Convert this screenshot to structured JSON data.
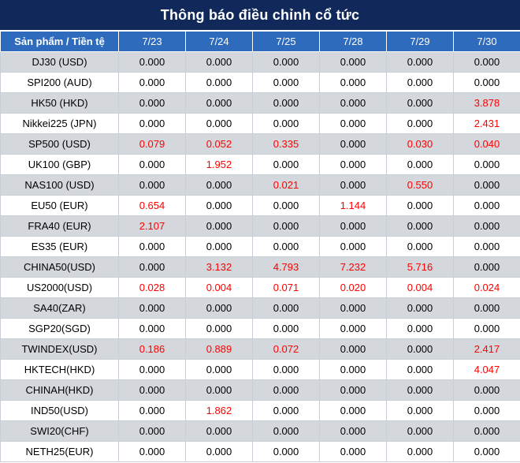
{
  "title": "Thông báo điều chỉnh cổ tức",
  "header": {
    "product_label": "Sản phẩm / Tiền tệ",
    "dates": [
      "7/23",
      "7/24",
      "7/25",
      "7/28",
      "7/29",
      "7/30"
    ]
  },
  "colors": {
    "title_bg": "#10295a",
    "header_bg": "#2f6bbd",
    "alt_row_bg": "#d4d7dc",
    "nonzero_text": "#ff0000"
  },
  "rows": [
    {
      "name": "DJ30 (USD)",
      "values": [
        "0.000",
        "0.000",
        "0.000",
        "0.000",
        "0.000",
        "0.000"
      ]
    },
    {
      "name": "SPI200 (AUD)",
      "values": [
        "0.000",
        "0.000",
        "0.000",
        "0.000",
        "0.000",
        "0.000"
      ]
    },
    {
      "name": "HK50 (HKD)",
      "values": [
        "0.000",
        "0.000",
        "0.000",
        "0.000",
        "0.000",
        "3.878"
      ]
    },
    {
      "name": "Nikkei225 (JPN)",
      "values": [
        "0.000",
        "0.000",
        "0.000",
        "0.000",
        "0.000",
        "2.431"
      ]
    },
    {
      "name": "SP500 (USD)",
      "values": [
        "0.079",
        "0.052",
        "0.335",
        "0.000",
        "0.030",
        "0.040"
      ]
    },
    {
      "name": "UK100 (GBP)",
      "values": [
        "0.000",
        "1.952",
        "0.000",
        "0.000",
        "0.000",
        "0.000"
      ]
    },
    {
      "name": "NAS100 (USD)",
      "values": [
        "0.000",
        "0.000",
        "0.021",
        "0.000",
        "0.550",
        "0.000"
      ]
    },
    {
      "name": "EU50 (EUR)",
      "values": [
        "0.654",
        "0.000",
        "0.000",
        "1.144",
        "0.000",
        "0.000"
      ]
    },
    {
      "name": "FRA40 (EUR)",
      "values": [
        "2.107",
        "0.000",
        "0.000",
        "0.000",
        "0.000",
        "0.000"
      ]
    },
    {
      "name": "ES35 (EUR)",
      "values": [
        "0.000",
        "0.000",
        "0.000",
        "0.000",
        "0.000",
        "0.000"
      ]
    },
    {
      "name": "CHINA50(USD)",
      "values": [
        "0.000",
        "3.132",
        "4.793",
        "7.232",
        "5.716",
        "0.000"
      ]
    },
    {
      "name": "US2000(USD)",
      "values": [
        "0.028",
        "0.004",
        "0.071",
        "0.020",
        "0.004",
        "0.024"
      ]
    },
    {
      "name": "SA40(ZAR)",
      "values": [
        "0.000",
        "0.000",
        "0.000",
        "0.000",
        "0.000",
        "0.000"
      ]
    },
    {
      "name": "SGP20(SGD)",
      "values": [
        "0.000",
        "0.000",
        "0.000",
        "0.000",
        "0.000",
        "0.000"
      ]
    },
    {
      "name": "TWINDEX(USD)",
      "values": [
        "0.186",
        "0.889",
        "0.072",
        "0.000",
        "0.000",
        "2.417"
      ]
    },
    {
      "name": "HKTECH(HKD)",
      "values": [
        "0.000",
        "0.000",
        "0.000",
        "0.000",
        "0.000",
        "4.047"
      ]
    },
    {
      "name": "CHINAH(HKD)",
      "values": [
        "0.000",
        "0.000",
        "0.000",
        "0.000",
        "0.000",
        "0.000"
      ]
    },
    {
      "name": "IND50(USD)",
      "values": [
        "0.000",
        "1.862",
        "0.000",
        "0.000",
        "0.000",
        "0.000"
      ]
    },
    {
      "name": "SWI20(CHF)",
      "values": [
        "0.000",
        "0.000",
        "0.000",
        "0.000",
        "0.000",
        "0.000"
      ]
    },
    {
      "name": "NETH25(EUR)",
      "values": [
        "0.000",
        "0.000",
        "0.000",
        "0.000",
        "0.000",
        "0.000"
      ]
    }
  ]
}
